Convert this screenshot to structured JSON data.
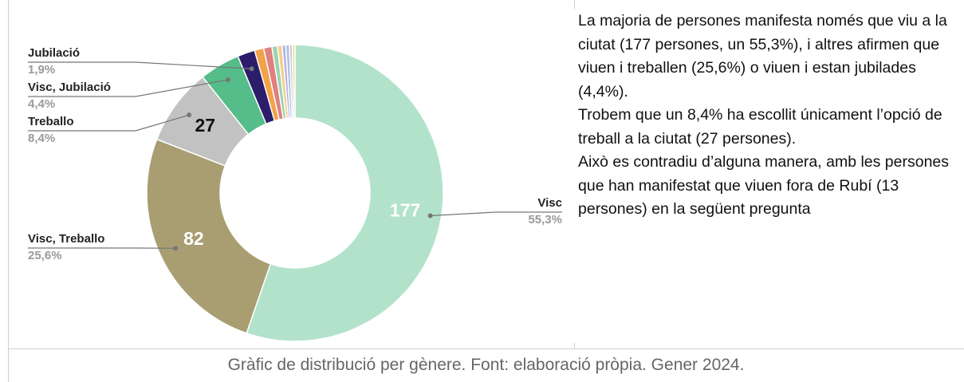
{
  "chart_data": {
    "type": "donut",
    "categories": [
      "Visc",
      "Visc, Treballo",
      "Treballo",
      "Visc, Jubilació",
      "Jubilació",
      null,
      null,
      null,
      null,
      null,
      null,
      null,
      null
    ],
    "values": [
      55.3,
      25.6,
      8.4,
      4.4,
      1.9,
      1.0,
      0.9,
      0.6,
      0.5,
      0.4,
      0.4,
      0.3,
      0.3
    ],
    "value_labels": [
      "55,3%",
      "25,6%",
      "8,4%",
      "4,4%",
      "1,9%",
      null,
      null,
      null,
      null,
      null,
      null,
      null,
      null
    ],
    "counts": [
      177,
      82,
      27,
      null,
      null,
      null,
      null,
      null,
      null,
      null,
      null,
      null,
      null
    ],
    "colors": [
      "#b3e2cb",
      "#a89e72",
      "#c2c2c2",
      "#55bd89",
      "#2c1d6b",
      "#f3a14a",
      "#e08080",
      "#9bd3b0",
      "#f2cf8c",
      "#b8b0e0",
      "#9ec7ea",
      "#e8b8c8",
      "#d8e8a0"
    ],
    "count_label_colors": [
      "#ffffff",
      "#ffffff",
      "#111111"
    ]
  },
  "text": {
    "paragraphs": [
      "La majoria de persones manifesta només que viu a la ciutat (177 persones, un 55,3%), i altres afirmen que viuen i treballen (25,6%) o viuen i estan jubilades (4,4%).",
      "Trobem que un 8,4% ha escollit únicament l’opció de treball a la ciutat (27 persones).",
      "Això es contradiu d’alguna manera, amb les persones que han manifestat que viuen fora de Rubí (13 persones) en la següent pregunta"
    ]
  },
  "caption": "Gràfic de distribució per gènere. Font: elaboració pròpia. Gener 2024."
}
